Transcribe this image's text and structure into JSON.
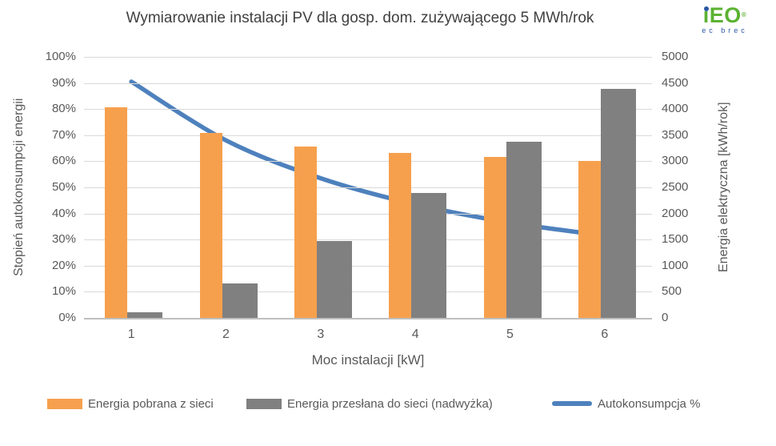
{
  "title": "Wymiarowanie instalacji PV dla gosp. dom. zużywającego 5 MWh/rok",
  "logo": {
    "text_i": "i",
    "text_rest": "EO",
    "reg": "®",
    "subtext": "ec brec",
    "green": "#5bb231",
    "blue": "#2a57a5"
  },
  "chart_data": {
    "type": "bar",
    "subtype": "combo-bar-line-dual-axis",
    "title": "Wymiarowanie instalacji PV dla gosp. dom. zużywającego 5 MWh/rok",
    "categories": [
      "1",
      "2",
      "3",
      "4",
      "5",
      "6"
    ],
    "xlabel": "Moc instalacji [kW]",
    "grid": true,
    "legend_position": "bottom",
    "left_axis": {
      "label": "Stopień autokonsumpcji energii",
      "min": 0,
      "max": 100,
      "ticks": [
        "0%",
        "10%",
        "20%",
        "30%",
        "40%",
        "50%",
        "60%",
        "70%",
        "80%",
        "90%",
        "100%"
      ]
    },
    "right_axis": {
      "label": "Energia elektryczna [kWh/rok]",
      "min": 0,
      "max": 5000,
      "ticks": [
        "0",
        "500",
        "1000",
        "1500",
        "2000",
        "2500",
        "3000",
        "3500",
        "4000",
        "4500",
        "5000"
      ]
    },
    "series": [
      {
        "name": "Energia pobrana z sieci",
        "type": "bar",
        "axis": "right",
        "color": "#f6a04d",
        "values": [
          4030,
          3545,
          3290,
          3160,
          3080,
          3010
        ]
      },
      {
        "name": "Energia przesłana do sieci (nadwyżka)",
        "type": "bar",
        "axis": "right",
        "color": "#808080",
        "values": [
          105,
          655,
          1470,
          2395,
          3380,
          4380
        ]
      },
      {
        "name": "Autokonsumpcja %",
        "type": "line",
        "axis": "left",
        "color": "#4e81bd",
        "values": [
          90.5,
          68,
          53.5,
          43.5,
          36.5,
          31.5
        ]
      }
    ],
    "colors": {
      "gridline": "#d9d9d9",
      "axis_line": "#bfbfbf",
      "text": "#595959",
      "title_text": "#404040"
    }
  }
}
